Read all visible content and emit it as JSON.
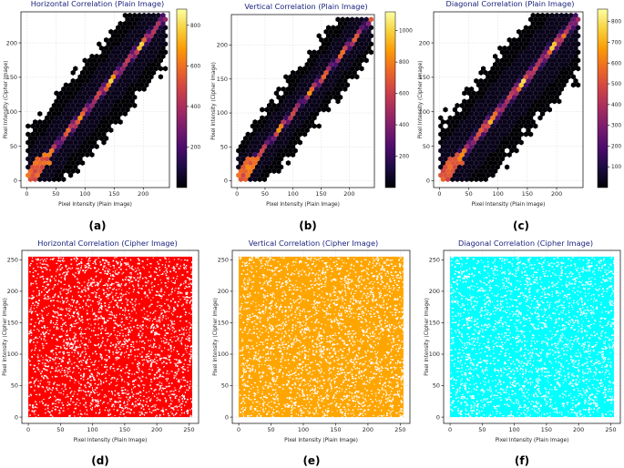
{
  "chart_data": [
    {
      "panel": "a",
      "caption": "(a)",
      "type": "heatmap",
      "style": "hexbin",
      "title": "Horizontal Correlation (Plain Image)",
      "xlabel": "Pixel Intensity (Plain Image)",
      "ylabel": "Pixel Intensity (Cipher Image)",
      "xlim": [
        -10,
        245
      ],
      "ylim": [
        -10,
        245
      ],
      "xticks": [
        0,
        50,
        100,
        150,
        200
      ],
      "yticks": [
        0,
        50,
        100,
        150,
        200
      ],
      "colorbar": {
        "colormap": "inferno",
        "range": [
          0,
          880
        ],
        "ticks": [
          200,
          400,
          600,
          800
        ]
      },
      "spread": 32,
      "seed": 11
    },
    {
      "panel": "b",
      "caption": "(b)",
      "type": "heatmap",
      "style": "hexbin",
      "title": "Vertical Correlation (Plain Image)",
      "xlabel": "Pixel Intensity (Plain Image)",
      "ylabel": "Pixel Intensity (Cipher Image)",
      "xlim": [
        -10,
        245
      ],
      "ylim": [
        -10,
        245
      ],
      "xticks": [
        0,
        50,
        100,
        150,
        200
      ],
      "yticks": [
        0,
        50,
        100,
        150,
        200
      ],
      "colorbar": {
        "colormap": "inferno",
        "range": [
          0,
          1120
        ],
        "ticks": [
          200,
          400,
          600,
          800,
          1000
        ]
      },
      "spread": 26,
      "seed": 23
    },
    {
      "panel": "c",
      "caption": "(c)",
      "type": "heatmap",
      "style": "hexbin",
      "title": "Diagonal Correlation (Plain Image)",
      "xlabel": "Pixel Intensity (Plain Image)",
      "ylabel": "Pixel Intensity (Cipher Image)",
      "xlim": [
        -10,
        245
      ],
      "ylim": [
        -10,
        245
      ],
      "xticks": [
        0,
        50,
        100,
        150,
        200
      ],
      "yticks": [
        0,
        50,
        100,
        150,
        200
      ],
      "colorbar": {
        "colormap": "inferno",
        "range": [
          0,
          860
        ],
        "ticks": [
          100,
          200,
          300,
          400,
          500,
          600,
          700,
          800
        ]
      },
      "spread": 38,
      "seed": 37
    },
    {
      "panel": "d",
      "caption": "(d)",
      "type": "scatter",
      "title": "Horizontal Correlation (Cipher Image)",
      "xlabel": "Pixel Intensity (Plain Image)",
      "ylabel": "Pixel Intensity (Cipher Image)",
      "xlim": [
        -10,
        265
      ],
      "ylim": [
        -10,
        265
      ],
      "xticks": [
        0,
        50,
        100,
        150,
        200,
        250
      ],
      "yticks": [
        0,
        50,
        100,
        150,
        200,
        250
      ],
      "color": "#ff0000",
      "distribution": "uniform",
      "range": [
        0,
        255
      ],
      "seed": 5
    },
    {
      "panel": "e",
      "caption": "(e)",
      "type": "scatter",
      "title": "Vertical Correlation (Cipher Image)",
      "xlabel": "Pixel Intensity (Plain Image)",
      "ylabel": "Pixel Intensity (Cipher Image)",
      "xlim": [
        -10,
        265
      ],
      "ylim": [
        -10,
        265
      ],
      "xticks": [
        0,
        50,
        100,
        150,
        200,
        250
      ],
      "yticks": [
        0,
        50,
        100,
        150,
        200,
        250
      ],
      "color": "#ffa500",
      "distribution": "uniform",
      "range": [
        0,
        255
      ],
      "seed": 7
    },
    {
      "panel": "f",
      "caption": "(f)",
      "type": "scatter",
      "title": "Diagonal Correlation (Cipher Image)",
      "xlabel": "Pixel Intensity (Plain Image)",
      "ylabel": "Pixel Intensity (Cipher Image)",
      "xlim": [
        -10,
        265
      ],
      "ylim": [
        -10,
        265
      ],
      "xticks": [
        0,
        50,
        100,
        150,
        200,
        250
      ],
      "yticks": [
        0,
        50,
        100,
        150,
        200,
        250
      ],
      "color": "#00ffff",
      "distribution": "uniform",
      "range": [
        0,
        255
      ],
      "seed": 9
    }
  ]
}
